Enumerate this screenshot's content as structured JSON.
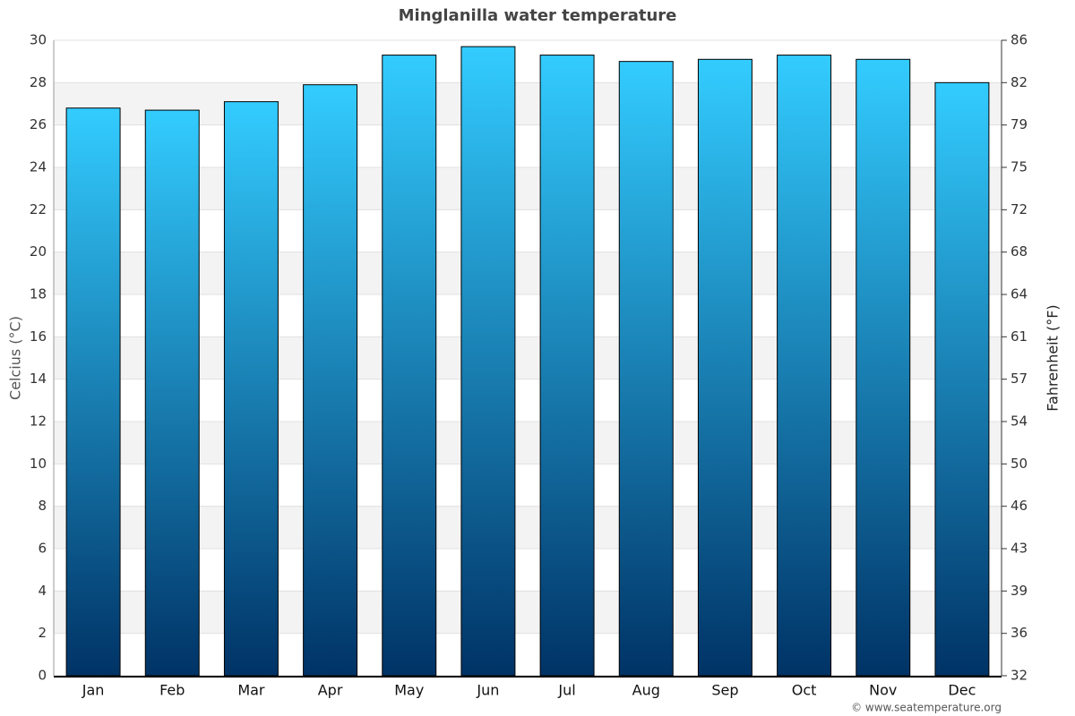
{
  "chart_data": {
    "type": "bar",
    "title": "Minglanilla water temperature",
    "y_label": "Celcius (°C)",
    "y2_label": "Fahrenheit (°F)",
    "source": "© www.seatemperature.org",
    "categories": [
      "Jan",
      "Feb",
      "Mar",
      "Apr",
      "May",
      "Jun",
      "Jul",
      "Aug",
      "Sep",
      "Oct",
      "Nov",
      "Dec"
    ],
    "values": [
      26.8,
      26.7,
      27.1,
      27.9,
      29.3,
      29.7,
      29.3,
      29.0,
      29.1,
      29.3,
      29.1,
      28.0
    ],
    "color": [
      "#33ccff",
      "#003366"
    ],
    "ylim": [
      0,
      30
    ],
    "yticks": [
      0,
      2,
      4,
      6,
      8,
      10,
      12,
      14,
      16,
      18,
      20,
      22,
      24,
      26,
      28,
      30
    ],
    "y2lim": [
      32,
      86
    ],
    "y2ticks": [
      32,
      {
        "value": 35.6,
        "label": "36"
      },
      {
        "value": 39.2,
        "label": "39"
      },
      {
        "value": 42.8,
        "label": "43"
      },
      {
        "value": 46.4,
        "label": "46"
      },
      50,
      {
        "value": 53.6,
        "label": "54"
      },
      {
        "value": 57.2,
        "label": "57"
      },
      {
        "value": 60.8,
        "label": "61"
      },
      {
        "value": 64.4,
        "label": "64"
      },
      68,
      {
        "value": 71.6,
        "label": "72"
      },
      {
        "value": 75.2,
        "label": "75"
      },
      {
        "value": 78.8,
        "label": "79"
      },
      {
        "value": 82.4,
        "label": "82"
      },
      86
    ],
    "grid": true
  }
}
